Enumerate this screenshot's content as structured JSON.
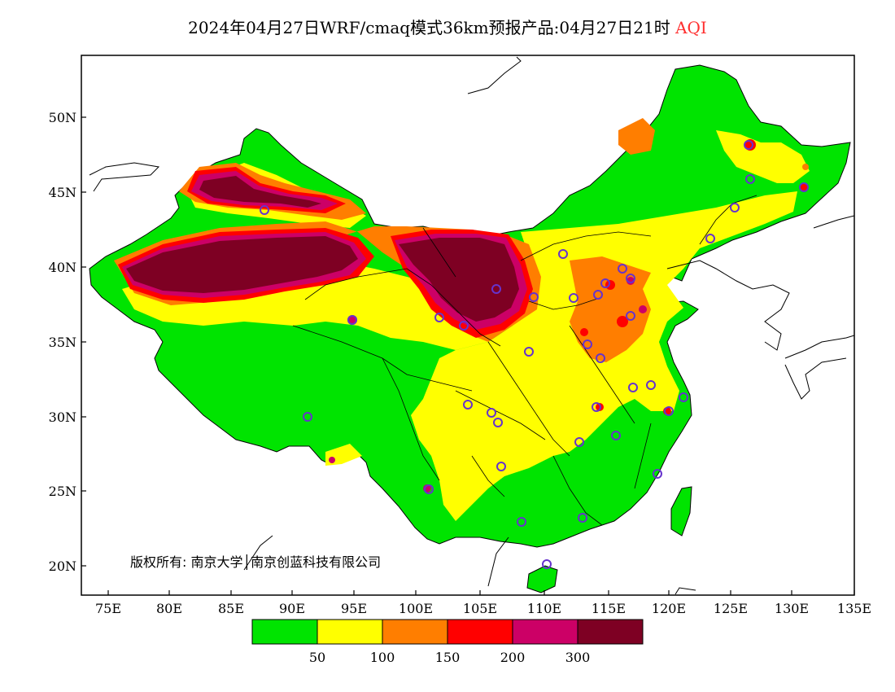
{
  "title": {
    "main": "2024年04月27日WRF/cmaq模式36km预报产品:04月27日21时",
    "tag": "AQI"
  },
  "map": {
    "lat_range": [
      18,
      54
    ],
    "lon_range": [
      73,
      135
    ],
    "lat_ticks": [
      "50N",
      "45N",
      "40N",
      "35N",
      "30N",
      "25N",
      "20N"
    ],
    "lon_ticks": [
      "75E",
      "80E",
      "85E",
      "90E",
      "95E",
      "100E",
      "105E",
      "110E",
      "115E",
      "120E",
      "125E",
      "130E",
      "135E"
    ],
    "copyright": "版权所有: 南京大学│南京创蓝科技有限公司",
    "colors": {
      "ocean": "#ffffff",
      "aqi_0_50": "#00e400",
      "aqi_50_100": "#ffff00",
      "aqi_100_150": "#ff7e00",
      "aqi_150_200": "#ff0000",
      "aqi_200_300": "#cc0066",
      "aqi_300_plus": "#7e0023",
      "station_marker": "#6633cc"
    }
  },
  "legend": {
    "labels": [
      "50",
      "100",
      "150",
      "200",
      "300"
    ],
    "colors": [
      "#00e400",
      "#ffff00",
      "#ff7e00",
      "#ff0000",
      "#cc0066",
      "#7e0023"
    ]
  }
}
